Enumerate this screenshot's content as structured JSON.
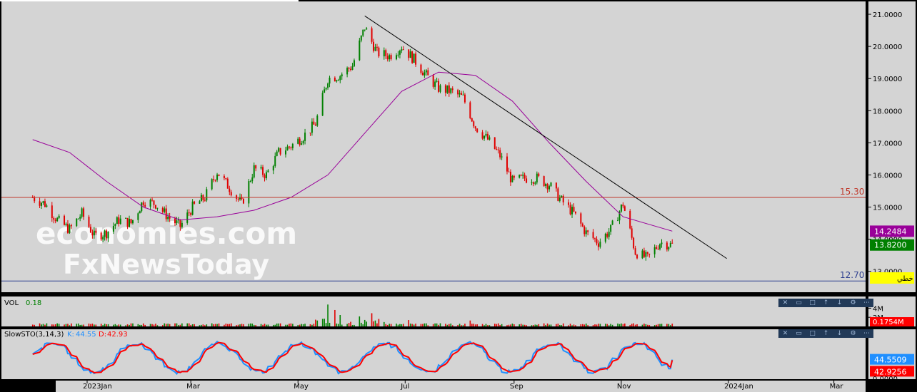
{
  "watermark": {
    "line1": "economies.com",
    "line2": "FxNewsToday"
  },
  "chart_data": [
    {
      "type": "candlestick",
      "panel": "price",
      "yaxis_ticks": [
        13.0,
        14.0,
        15.0,
        16.0,
        17.0,
        18.0,
        19.0,
        20.0,
        21.0
      ],
      "yaxis_tick_labels": [
        "13.0000",
        "14.0000",
        "15.0000",
        "16.0000",
        "17.0000",
        "18.0000",
        "19.0000",
        "20.0000",
        "21.0000"
      ],
      "ylim": [
        12.35,
        21.4
      ],
      "xaxis_labels": [
        {
          "label": "2023Jan",
          "date": "2023-01-01"
        },
        {
          "label": "Mar",
          "date": "2023-03-01"
        },
        {
          "label": "May",
          "date": "2023-05-01"
        },
        {
          "label": "Jul",
          "date": "2023-07-01"
        },
        {
          "label": "Sep",
          "date": "2023-09-01"
        },
        {
          "label": "Nov",
          "date": "2023-11-01"
        },
        {
          "label": "2024Jan",
          "date": "2024-01-01"
        },
        {
          "label": "Mar",
          "date": "2024-03-01"
        }
      ],
      "close_path": [
        [
          "2022-12-01",
          15.3
        ],
        [
          "2022-12-08",
          15.1
        ],
        [
          "2022-12-15",
          14.6
        ],
        [
          "2022-12-22",
          14.3
        ],
        [
          "2022-12-29",
          14.8
        ],
        [
          "2023-01-05",
          14.1
        ],
        [
          "2023-01-12",
          14.2
        ],
        [
          "2023-01-19",
          14.6
        ],
        [
          "2023-01-26",
          14.5
        ],
        [
          "2023-02-02",
          15.2
        ],
        [
          "2023-02-09",
          15.1
        ],
        [
          "2023-02-16",
          14.7
        ],
        [
          "2023-02-23",
          14.4
        ],
        [
          "2023-03-02",
          15.0
        ],
        [
          "2023-03-09",
          15.3
        ],
        [
          "2023-03-16",
          16.1
        ],
        [
          "2023-03-23",
          15.6
        ],
        [
          "2023-03-30",
          15.1
        ],
        [
          "2023-04-06",
          16.2
        ],
        [
          "2023-04-13",
          16.0
        ],
        [
          "2023-04-20",
          16.7
        ],
        [
          "2023-04-27",
          16.9
        ],
        [
          "2023-05-04",
          17.2
        ],
        [
          "2023-05-11",
          17.6
        ],
        [
          "2023-05-18",
          19.0
        ],
        [
          "2023-05-25",
          19.1
        ],
        [
          "2023-06-01",
          19.4
        ],
        [
          "2023-06-08",
          20.6
        ],
        [
          "2023-06-15",
          19.8
        ],
        [
          "2023-06-22",
          19.7
        ],
        [
          "2023-06-29",
          20.0
        ],
        [
          "2023-07-06",
          19.6
        ],
        [
          "2023-07-13",
          19.1
        ],
        [
          "2023-07-20",
          18.7
        ],
        [
          "2023-07-27",
          18.6
        ],
        [
          "2023-08-03",
          18.4
        ],
        [
          "2023-08-10",
          17.5
        ],
        [
          "2023-08-17",
          17.1
        ],
        [
          "2023-08-24",
          16.6
        ],
        [
          "2023-08-31",
          15.8
        ],
        [
          "2023-09-07",
          15.9
        ],
        [
          "2023-09-14",
          15.9
        ],
        [
          "2023-09-21",
          15.7
        ],
        [
          "2023-09-28",
          15.2
        ],
        [
          "2023-10-05",
          14.8
        ],
        [
          "2023-10-12",
          14.2
        ],
        [
          "2023-10-19",
          13.9
        ],
        [
          "2023-10-26",
          14.3
        ],
        [
          "2023-11-02",
          15.1
        ],
        [
          "2023-11-09",
          13.6
        ],
        [
          "2023-11-16",
          13.4
        ],
        [
          "2023-11-23",
          13.9
        ],
        [
          "2023-11-30",
          13.82
        ]
      ],
      "moving_average": {
        "color": "#990099",
        "last_value": 14.2484,
        "last_label": "14.2484",
        "path": [
          [
            "2022-12-01",
            17.1
          ],
          [
            "2022-12-22",
            16.7
          ],
          [
            "2023-01-12",
            15.8
          ],
          [
            "2023-02-02",
            15.0
          ],
          [
            "2023-02-23",
            14.6
          ],
          [
            "2023-03-16",
            14.7
          ],
          [
            "2023-04-06",
            14.9
          ],
          [
            "2023-04-27",
            15.3
          ],
          [
            "2023-05-18",
            16.0
          ],
          [
            "2023-06-08",
            17.3
          ],
          [
            "2023-06-29",
            18.6
          ],
          [
            "2023-07-20",
            19.2
          ],
          [
            "2023-08-10",
            19.1
          ],
          [
            "2023-08-31",
            18.3
          ],
          [
            "2023-09-21",
            17.0
          ],
          [
            "2023-10-12",
            15.8
          ],
          [
            "2023-11-02",
            14.7
          ],
          [
            "2023-11-30",
            14.25
          ]
        ]
      },
      "last_price": {
        "value": 13.82,
        "label": "13.8200",
        "color": "#008000"
      },
      "horizontal_lines": [
        {
          "value": 15.3,
          "label": "15.30",
          "color": "#c0392b"
        },
        {
          "value": 12.7,
          "label": "12.70",
          "color": "#2c3e8f"
        }
      ],
      "trendline": {
        "from": [
          "2023-06-08",
          20.95
        ],
        "to": [
          "2023-12-31",
          13.4
        ],
        "color": "#000000"
      },
      "axis_badge": {
        "label": "خطي",
        "color": "#ffff00"
      }
    },
    {
      "type": "bar",
      "panel": "volume",
      "label": "VOL",
      "value_label": "0.18",
      "yaxis_ticks": [
        2,
        4
      ],
      "yaxis_tick_labels": [
        "2M",
        "4M"
      ],
      "ylim": [
        0,
        5
      ],
      "last_label": "0.1754M",
      "last_color": "#ff0000",
      "spikes": [
        [
          "2023-05-18",
          4.8
        ],
        [
          "2023-05-22",
          3.6
        ],
        [
          "2023-05-25",
          2.5
        ],
        [
          "2023-06-05",
          2.2
        ],
        [
          "2023-06-12",
          2.9
        ],
        [
          "2023-07-03",
          1.4
        ],
        [
          "2023-08-07",
          1.3
        ]
      ]
    },
    {
      "type": "line",
      "panel": "stochastic",
      "label": "SlowSTO(3,14,3)",
      "series": [
        {
          "name": "K",
          "value_label": "44.55",
          "color": "#1f8fff",
          "last_label": "44.5509"
        },
        {
          "name": "D",
          "value_label": "42.93",
          "color": "#ff0000",
          "last_label": "42.9256"
        }
      ],
      "yaxis_ticks": [
        0
      ],
      "yaxis_tick_labels": [
        "0.0000"
      ],
      "ylim": [
        0,
        100
      ]
    }
  ],
  "toolbar_icons": [
    "close-icon",
    "restore-icon",
    "maximize-icon",
    "move-up-icon",
    "move-down-icon",
    "settings-icon",
    "more-icon"
  ]
}
